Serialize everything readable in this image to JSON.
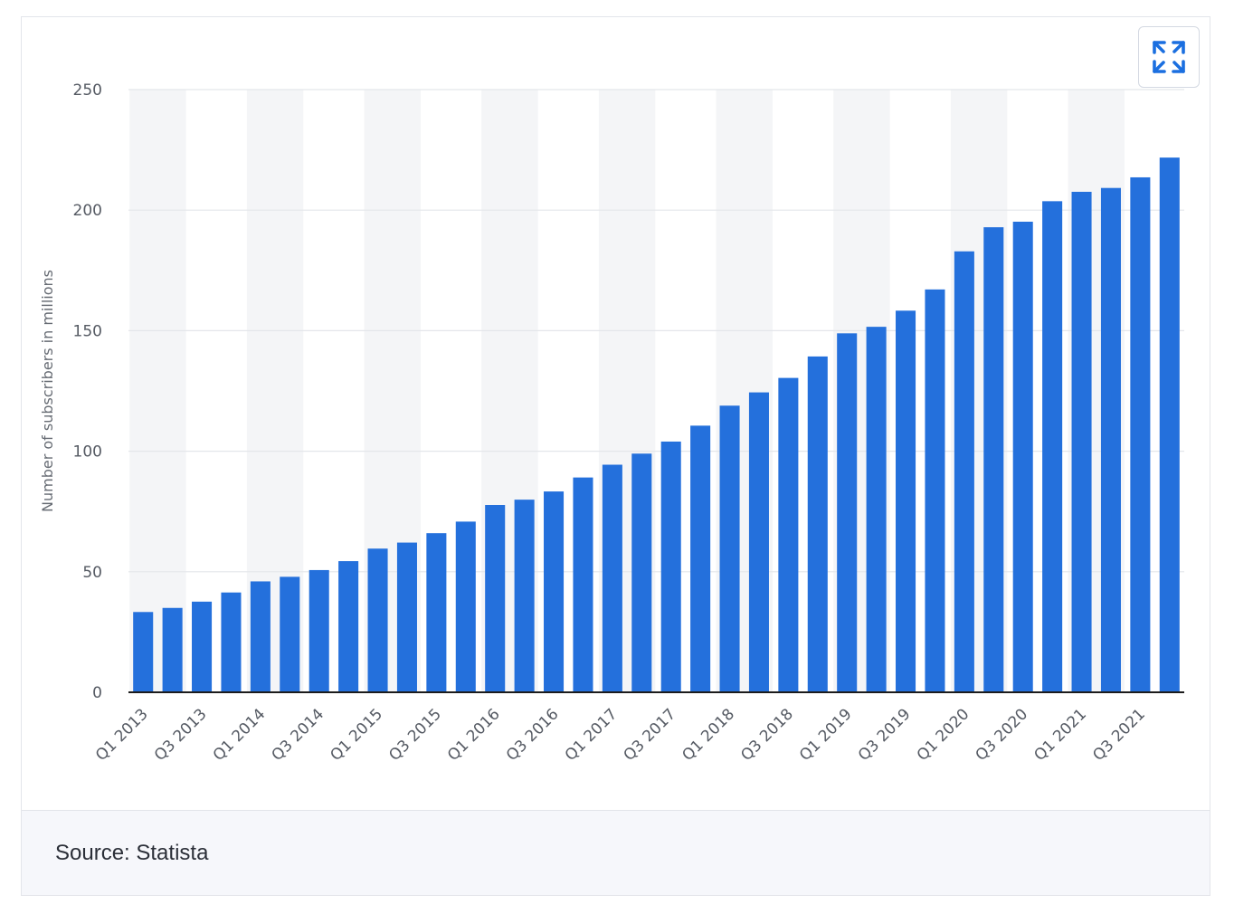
{
  "source": "Source: Statista",
  "colors": {
    "bar": "#2470dc",
    "band": "#f4f5f7",
    "grid": "#e4e6ea",
    "axis": "#1c1c1c",
    "icon": "#1b6fe0"
  },
  "toolbar": {
    "fullscreen_icon": "expand-icon"
  },
  "chart_data": {
    "type": "bar",
    "title": "",
    "xlabel": "",
    "ylabel": "Number of subscribers in millions",
    "ylim": [
      0,
      250
    ],
    "yticks": [
      "0",
      "50",
      "100",
      "150",
      "200",
      "250"
    ],
    "grid": true,
    "categories": [
      "Q1 2013",
      "Q2 2013",
      "Q3 2013",
      "Q4 2013",
      "Q1 2014",
      "Q2 2014",
      "Q3 2014",
      "Q4 2014",
      "Q1 2015",
      "Q2 2015",
      "Q3 2015",
      "Q4 2015",
      "Q1 2016",
      "Q2 2016",
      "Q3 2016",
      "Q4 2016",
      "Q1 2017",
      "Q2 2017",
      "Q3 2017",
      "Q4 2017",
      "Q1 2018",
      "Q2 2018",
      "Q3 2018",
      "Q4 2018",
      "Q1 2019",
      "Q2 2019",
      "Q3 2019",
      "Q4 2019",
      "Q1 2020",
      "Q2 2020",
      "Q3 2020",
      "Q4 2020",
      "Q1 2021",
      "Q2 2021",
      "Q3 2021",
      "Q4 2021"
    ],
    "visible_xticks": [
      "Q1 2013",
      "Q3 2013",
      "Q1 2014",
      "Q3 2014",
      "Q1 2015",
      "Q3 2015",
      "Q1 2016",
      "Q3 2016",
      "Q1 2017",
      "Q3 2017",
      "Q1 2018",
      "Q3 2018",
      "Q1 2019",
      "Q3 2019",
      "Q1 2020",
      "Q3 2020",
      "Q1 2021",
      "Q3 2021"
    ],
    "values": [
      33.3,
      35.0,
      37.6,
      41.4,
      46.0,
      47.9,
      50.7,
      54.4,
      59.6,
      62.1,
      66.0,
      70.8,
      77.7,
      79.9,
      83.3,
      89.1,
      94.4,
      99.0,
      104.0,
      110.6,
      118.9,
      124.4,
      130.4,
      139.3,
      148.9,
      151.6,
      158.3,
      167.1,
      182.9,
      192.9,
      195.2,
      203.7,
      207.6,
      209.2,
      213.6,
      221.8
    ]
  }
}
